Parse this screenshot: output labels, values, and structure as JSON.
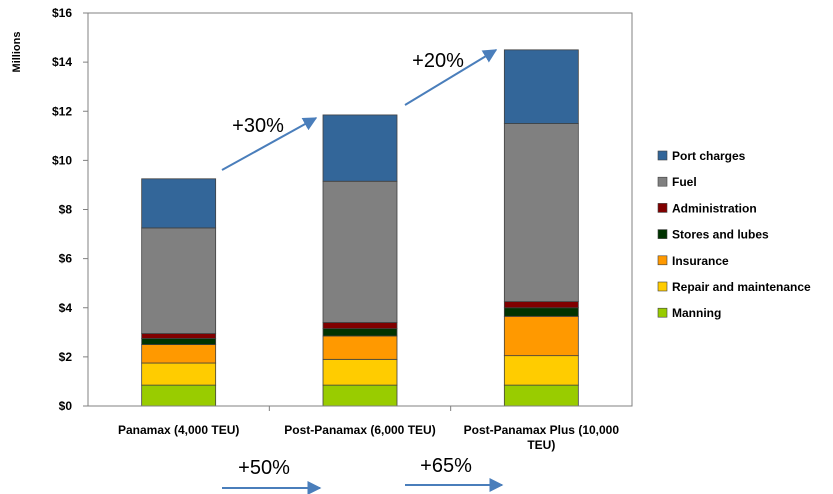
{
  "chart_data": {
    "type": "bar",
    "stacked": true,
    "ylabel": "Millions",
    "ylim": [
      0,
      16
    ],
    "yticks": [
      "$0",
      "$2",
      "$4",
      "$6",
      "$8",
      "$10",
      "$12",
      "$14",
      "$16"
    ],
    "categories": [
      [
        "Panamax (4,000 TEU)"
      ],
      [
        "Post-Panamax (6,000 TEU)"
      ],
      [
        "Post-Panamax Plus (10,000",
        "TEU)"
      ]
    ],
    "series": [
      {
        "name": "Manning",
        "color": "#99cc00",
        "values": [
          0.85,
          0.85,
          0.85
        ]
      },
      {
        "name": "Repair and maintenance",
        "color": "#ffcc00",
        "values": [
          0.9,
          1.05,
          1.2
        ]
      },
      {
        "name": "Insurance",
        "color": "#ff9900",
        "values": [
          0.75,
          0.95,
          1.6
        ]
      },
      {
        "name": "Stores and lubes",
        "color": "#003300",
        "values": [
          0.25,
          0.3,
          0.35
        ]
      },
      {
        "name": "Administration",
        "color": "#800000",
        "values": [
          0.2,
          0.25,
          0.25
        ]
      },
      {
        "name": "Fuel",
        "color": "#808080",
        "values": [
          4.3,
          5.75,
          7.25
        ]
      },
      {
        "name": "Port charges",
        "color": "#336699",
        "values": [
          2.0,
          2.7,
          3.0
        ]
      }
    ],
    "legend_position": "right",
    "annotations": {
      "top": [
        {
          "text": "+30%"
        },
        {
          "text": "+20%"
        }
      ],
      "bottom": [
        {
          "text": "+50%"
        },
        {
          "text": "+65%"
        }
      ]
    }
  }
}
